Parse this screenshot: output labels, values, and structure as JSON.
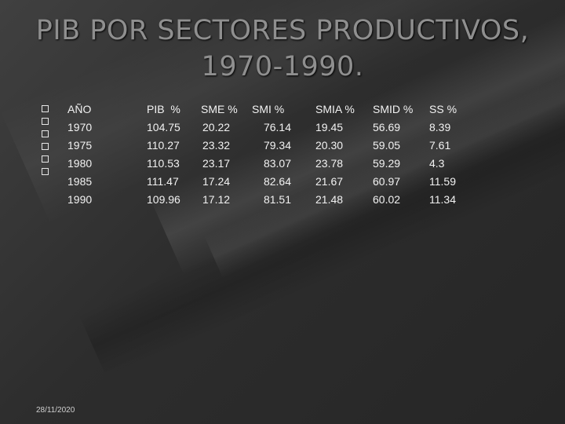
{
  "title": {
    "line1": "PIB POR SECTORES PRODUCTIVOS,",
    "line2": "1970-1990."
  },
  "headers": {
    "year": "AÑO",
    "pib": "PIB  %",
    "sme": "SME %",
    "smi": "SMI %",
    "smia": "SMIA %",
    "smid": "SMID %",
    "ss": "SS %"
  },
  "rows": [
    {
      "year": "1970",
      "pib": "104.75",
      "sme": "20.22",
      "smi": "76.14",
      "smia": "19.45",
      "smid": "56.69",
      "ss": "8.39"
    },
    {
      "year": "1975",
      "pib": "110.27",
      "sme": "23.32",
      "smi": "79.34",
      "smia": "20.30",
      "smid": "59.05",
      "ss": "7.61"
    },
    {
      "year": "1980",
      "pib": "110.53",
      "sme": "23.17",
      "smi": "83.07",
      "smia": "23.78",
      "smid": "59.29",
      "ss": "4.3"
    },
    {
      "year": "1985",
      "pib": "111.47",
      "sme": "17.24",
      "smi": "82.64",
      "smia": "21.67",
      "smid": "60.97",
      "ss": "11.59"
    },
    {
      "year": "1990",
      "pib": "109.96",
      "sme": "17.12",
      "smi": "81.51",
      "smia": "21.48",
      "smid": "60.02",
      "ss": "11.34"
    }
  ],
  "date": "28/11/2020"
}
